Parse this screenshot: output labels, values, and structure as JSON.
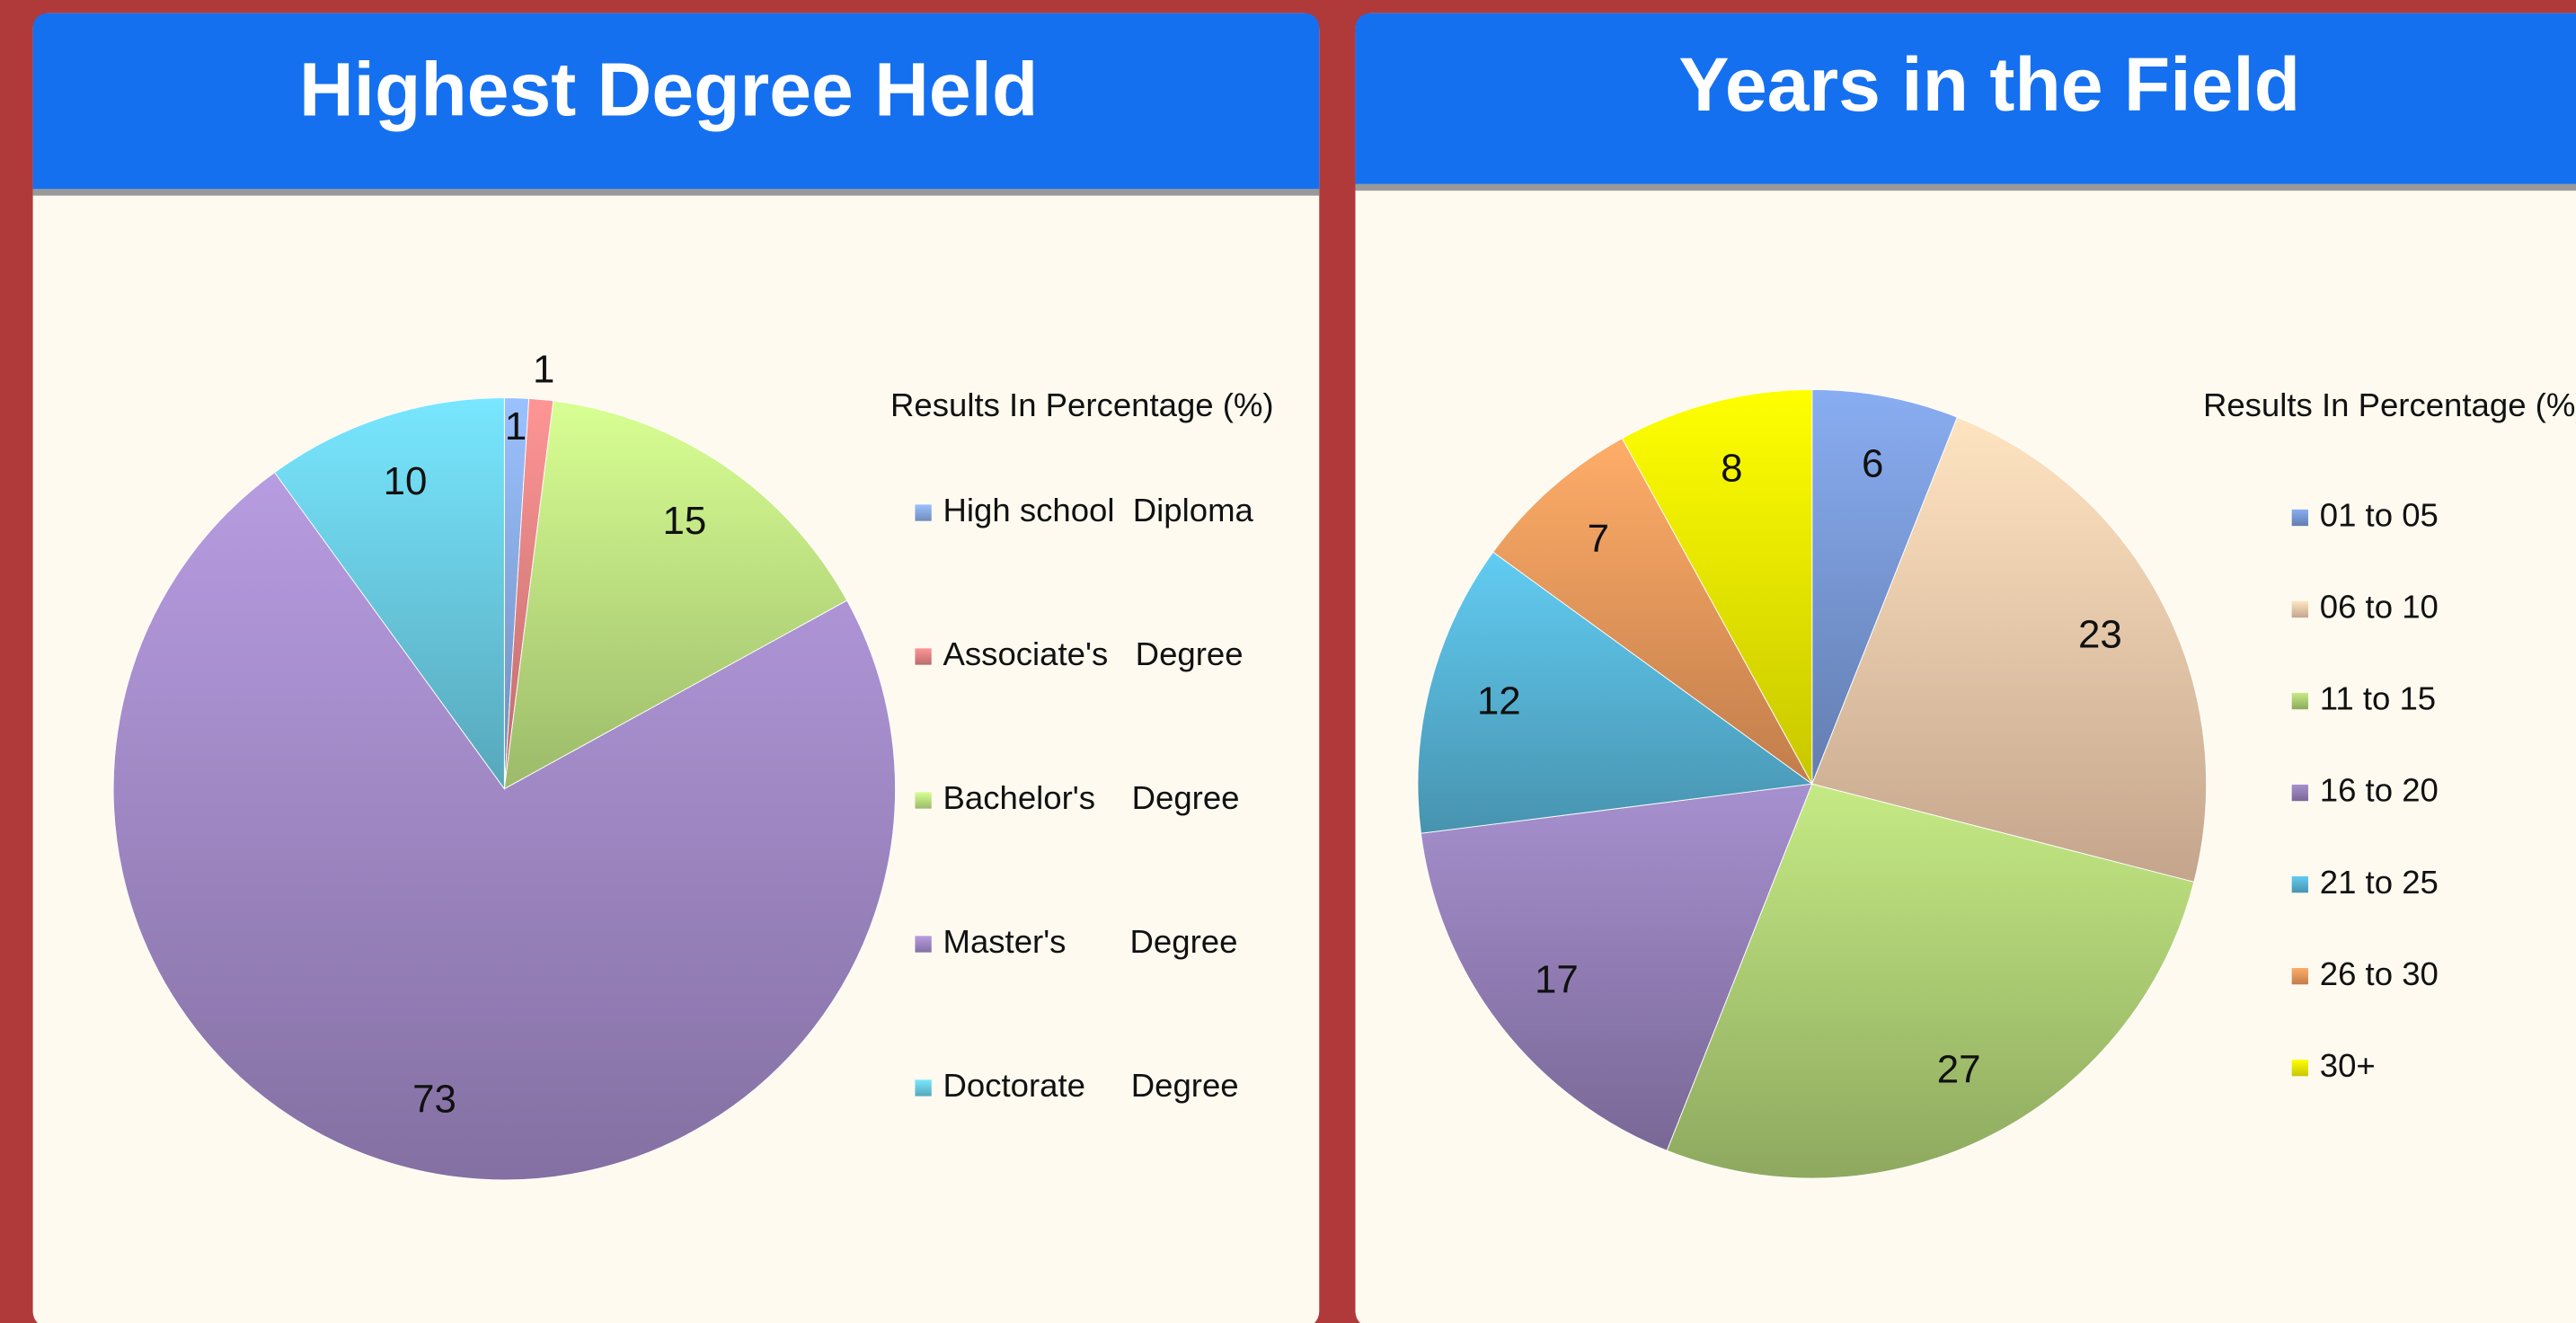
{
  "chart_data": [
    {
      "type": "pie",
      "title": "Highest Degree Held",
      "legend_title": "Results In Percentage (%)",
      "categories": [
        "High school  Diploma",
        "Associate's   Degree",
        "Bachelor's    Degree",
        "Master's       Degree",
        "Doctorate     Degree"
      ],
      "values": [
        1,
        1,
        15,
        73,
        10
      ],
      "colors": [
        "#8fb3f0",
        "#f08a8a",
        "#c8ee88",
        "#a990d0",
        "#6fd6ee"
      ]
    },
    {
      "type": "pie",
      "title": "Years in the Field",
      "legend_title": "Results In Percentage (%)",
      "categories": [
        "01 to 05",
        "06 to 10",
        "11 to 15",
        "16 to 20",
        "21 to 25",
        "26 to 30",
        "30+"
      ],
      "values": [
        6,
        23,
        27,
        17,
        12,
        7,
        8
      ],
      "colors": [
        "#7fa0e0",
        "#fbd3b3",
        "#b6d97a",
        "#9b85c0",
        "#5bbde0",
        "#f8a060",
        "#ffff00"
      ]
    }
  ]
}
